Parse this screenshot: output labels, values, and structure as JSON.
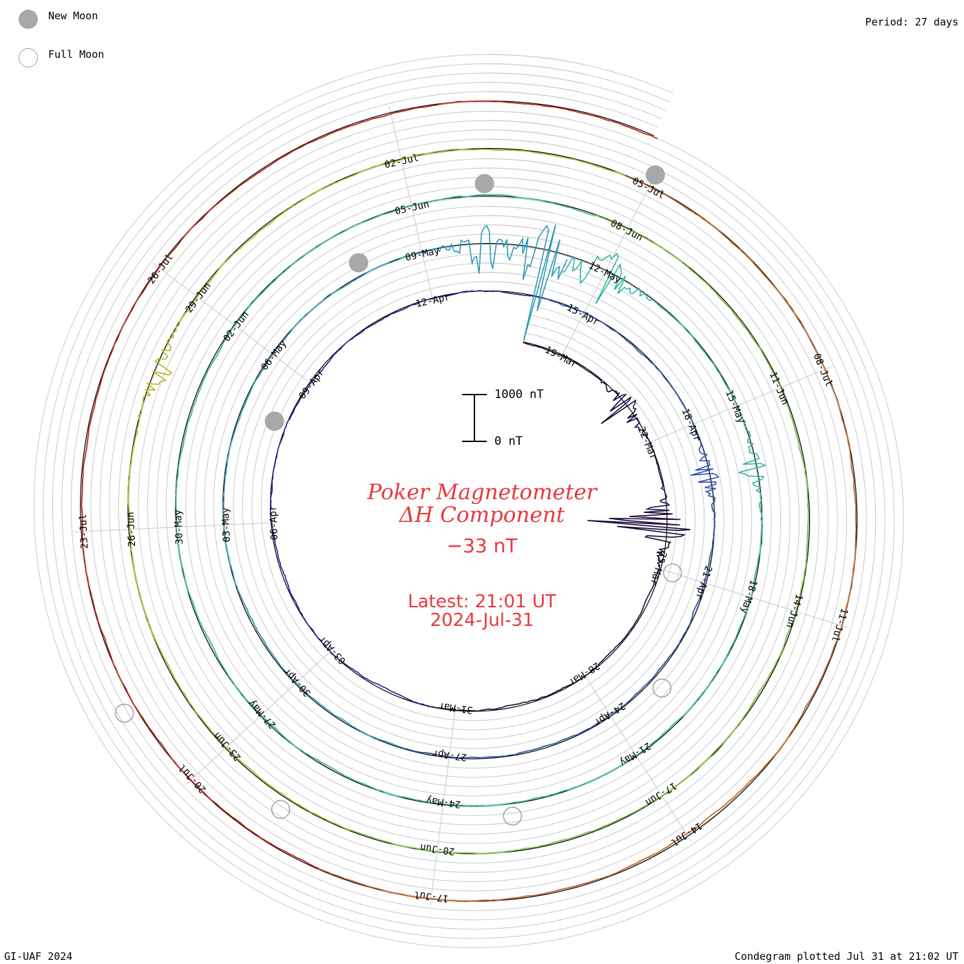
{
  "legend": {
    "new_moon_label": "New Moon",
    "full_moon_label": "Full Moon",
    "new_moon_color": "#a8a8a8",
    "full_moon_color": "#a0a0a0"
  },
  "period_label": "Period: 27 days",
  "center": {
    "title_line1": "Poker Magnetometer",
    "title_line2": "ΔH Component",
    "current_value": "−33 nT",
    "latest_line1": "Latest: 21:01 UT",
    "latest_line2": "2024-Jul-31",
    "text_color": "#e8393f"
  },
  "scale": {
    "top_label": "1000 nT",
    "bottom_label": "0 nT"
  },
  "footer": {
    "left": "GI-UAF 2024",
    "right": "Condegram plotted Jul 31 at 21:02 UT"
  },
  "chart_data": {
    "type": "line",
    "layout": "spiral condegram",
    "period_days": 27,
    "quantity": "ΔH",
    "unit": "nT",
    "start_date": "2024-03-18",
    "end_date": "2024-07-31",
    "series_colors": [
      "#1a0a3c",
      "#2a1a8a",
      "#2f4fb0",
      "#2f9ab5",
      "#35b5a5",
      "#3cc080",
      "#7ec040",
      "#b5b420",
      "#c56020",
      "#c02010"
    ],
    "date_labels": [
      "19-Mar",
      "22-Mar",
      "25-Mar",
      "28-Mar",
      "31-Mar",
      "03-Apr",
      "06-Apr",
      "09-Apr",
      "12-Apr",
      "15-Apr",
      "18-Apr",
      "21-Apr",
      "24-Apr",
      "27-Apr",
      "30-Apr",
      "03-May",
      "06-May",
      "09-May",
      "12-May",
      "15-May",
      "18-May",
      "21-May",
      "24-May",
      "27-May",
      "30-May",
      "02-Jun",
      "05-Jun",
      "08-Jun",
      "11-Jun",
      "14-Jun",
      "17-Jun",
      "20-Jun",
      "23-Jun",
      "26-Jun",
      "29-Jun",
      "02-Jul",
      "05-Jul",
      "08-Jul",
      "11-Jul",
      "14-Jul",
      "17-Jul",
      "20-Jul",
      "23-Jul",
      "26-Jul"
    ],
    "new_moons": [
      "2024-04-08",
      "2024-05-08",
      "2024-06-06",
      "2024-07-05"
    ],
    "full_moons": [
      "2024-03-25",
      "2024-04-23",
      "2024-05-23",
      "2024-06-22",
      "2024-07-21"
    ],
    "disturbances": [
      {
        "date": "2024-03-24",
        "peak_nT": 1400
      },
      {
        "date": "2024-03-21",
        "peak_nT": 600
      },
      {
        "date": "2024-04-19",
        "peak_nT": 400
      },
      {
        "date": "2024-05-10",
        "peak_nT": 800
      },
      {
        "date": "2024-05-11",
        "peak_nT": 1500
      },
      {
        "date": "2024-05-12",
        "peak_nT": 900
      },
      {
        "date": "2024-05-16",
        "peak_nT": 350
      },
      {
        "date": "2024-06-28",
        "peak_nT": 300
      }
    ]
  }
}
